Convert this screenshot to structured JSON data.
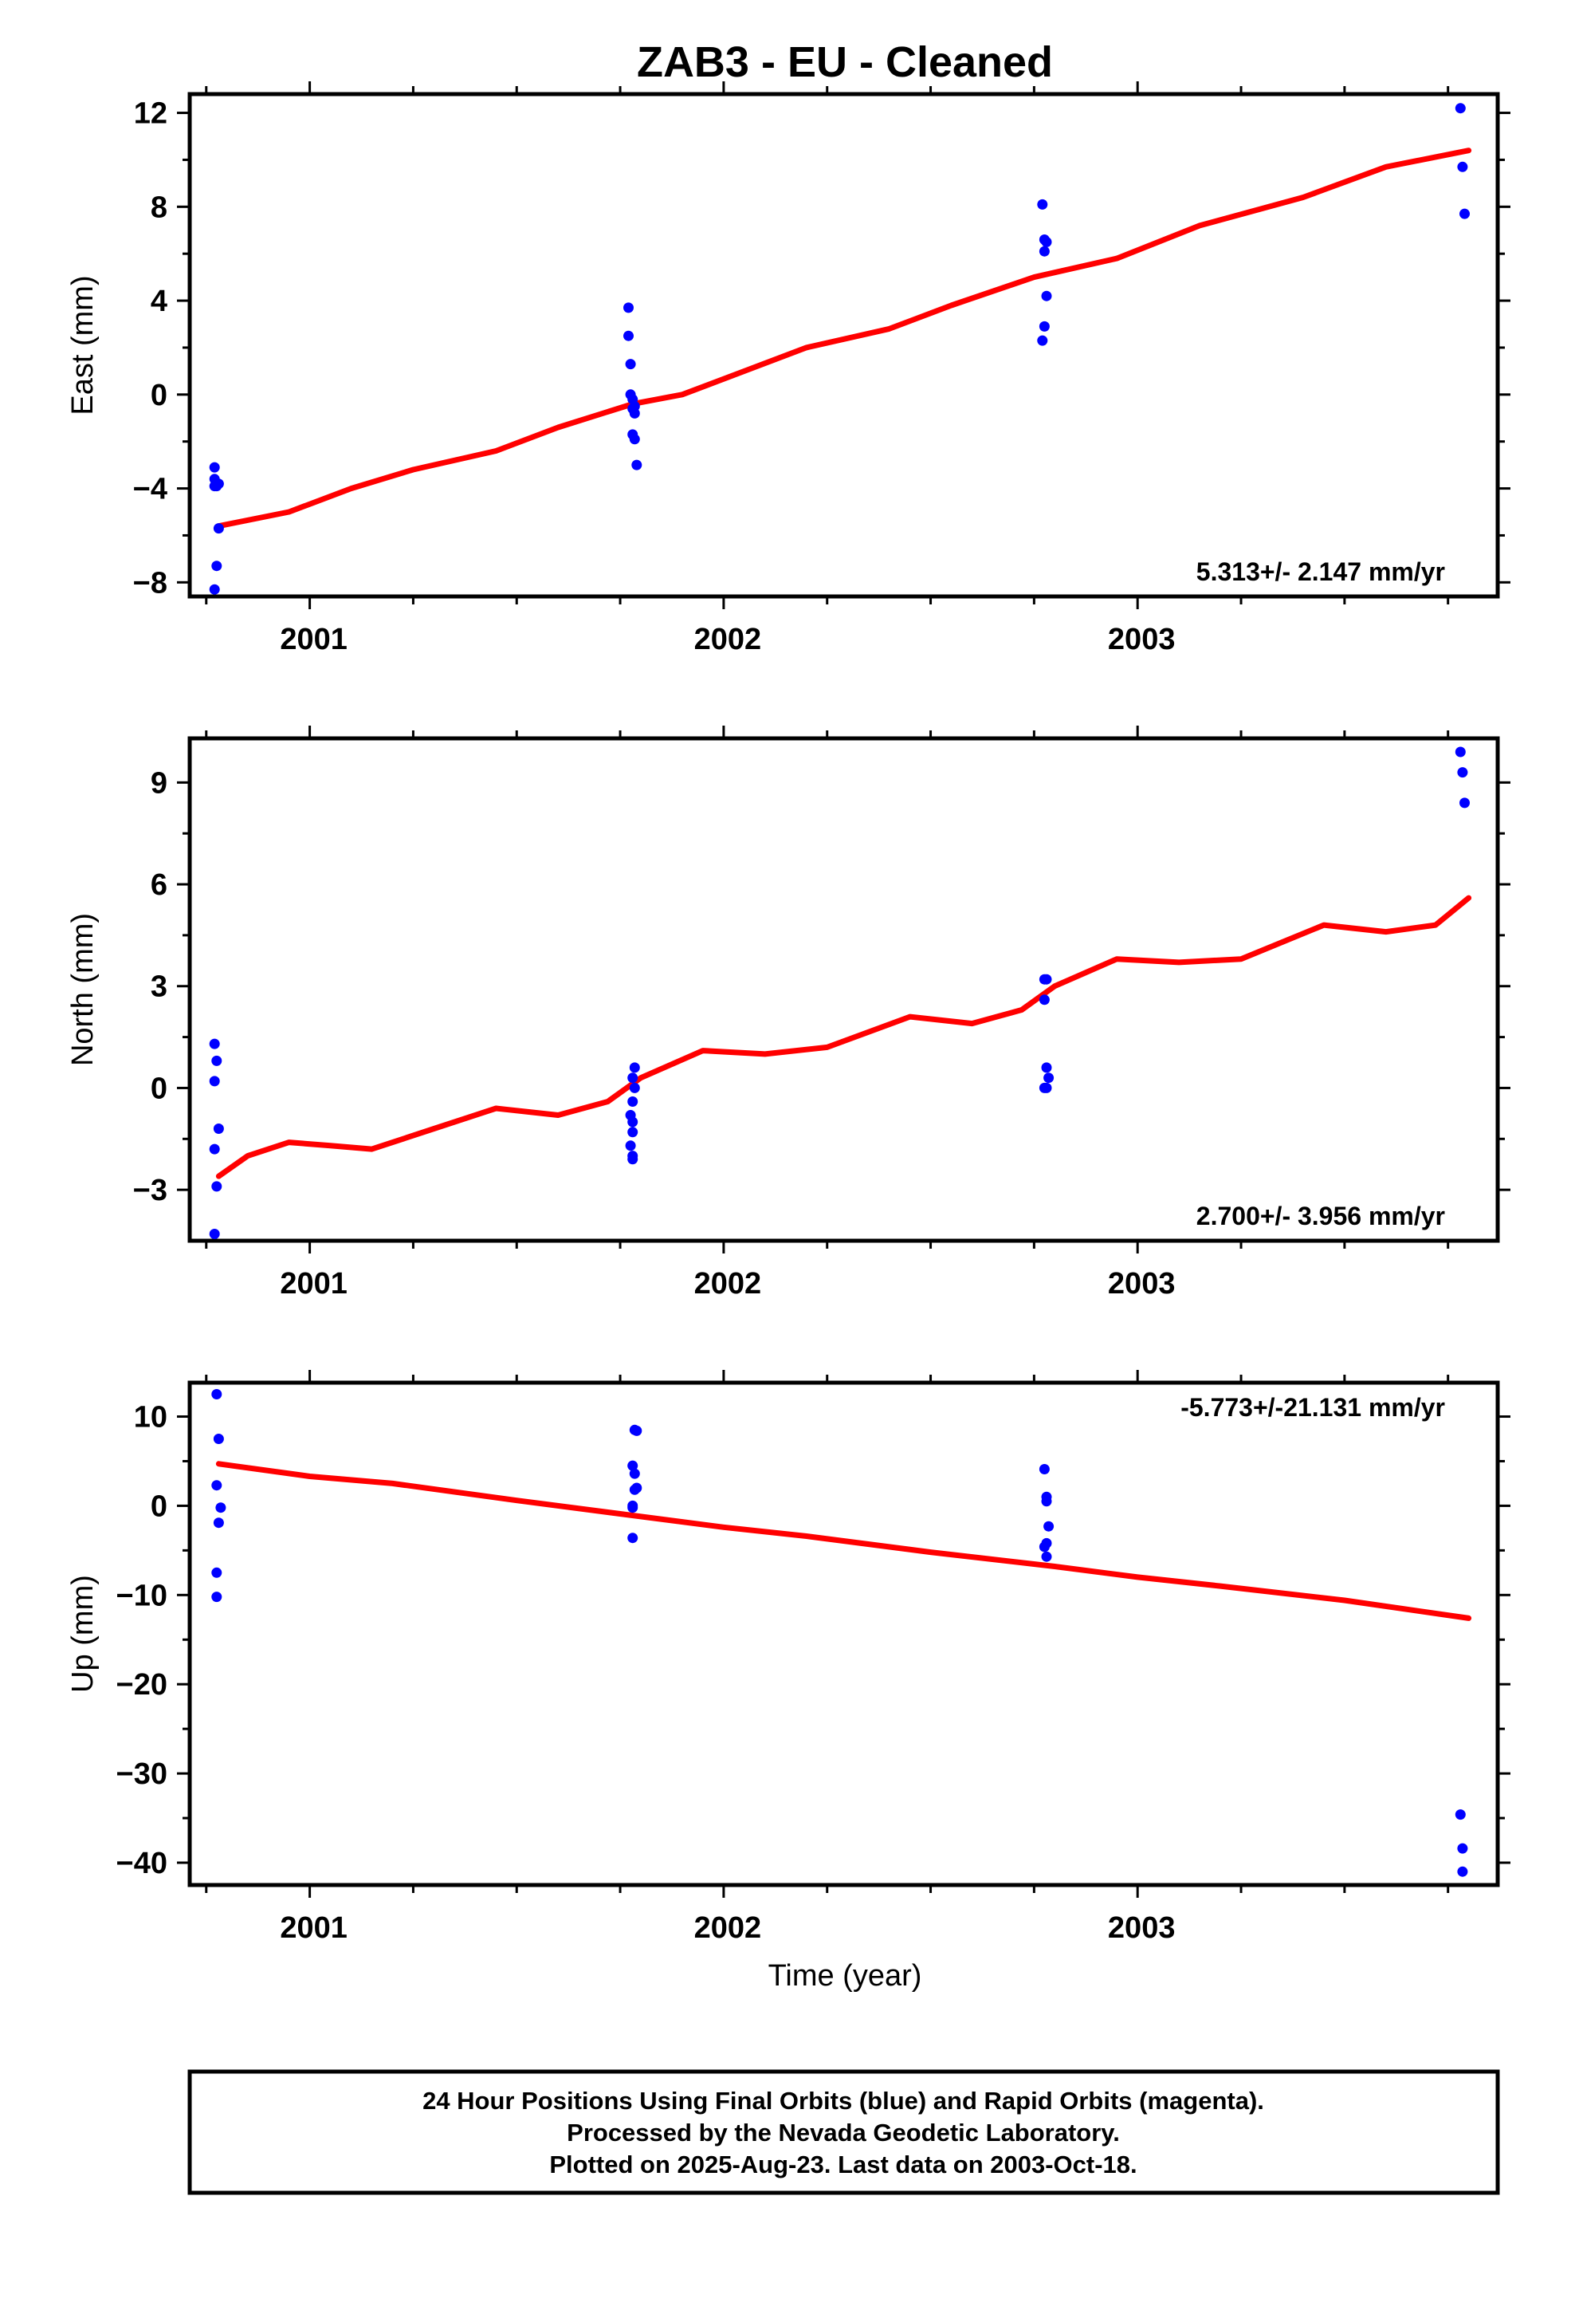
{
  "title": "ZAB3  - EU - Cleaned",
  "xlabel": "Time (year)",
  "x_ticks": [
    "2001",
    "2002",
    "2003"
  ],
  "footer": {
    "line1": "24 Hour Positions Using Final Orbits (blue) and Rapid Orbits (magenta).",
    "line2": "Processed by the Nevada Geodetic Laboratory.",
    "line3": "Plotted on 2025-Aug-23. Last data on 2003-Oct-18."
  },
  "colors": {
    "final_orbits": "#0000ff",
    "rapid_orbits": "#ff00ff",
    "model": "#ff0000",
    "frame": "#000000"
  },
  "chart_data": [
    {
      "type": "scatter",
      "name": "east",
      "ylabel": "East (mm)",
      "rate_text": "5.313+/- 2.147 mm/yr",
      "xlim": [
        2000.71,
        2003.87
      ],
      "ylim": [
        -8.6,
        12.8
      ],
      "yticks": [
        -8,
        -4,
        0,
        4,
        8,
        12
      ],
      "x": [
        2000.77,
        2000.77,
        2000.775,
        2000.78,
        2000.78,
        2000.775,
        2000.77,
        2000.77,
        2001.77,
        2001.77,
        2001.775,
        2001.775,
        2001.78,
        2001.78,
        2001.785,
        2001.78,
        2001.785,
        2001.79,
        2001.785,
        2002.77,
        2002.775,
        2002.78,
        2002.775,
        2002.78,
        2002.775,
        2002.77,
        2003.78,
        2003.785,
        2003.79
      ],
      "y": [
        -3.1,
        -3.6,
        -3.9,
        -3.8,
        -5.7,
        -7.3,
        -8.3,
        -3.9,
        3.7,
        2.5,
        1.3,
        0.0,
        -0.2,
        -0.6,
        -0.8,
        -1.7,
        -1.9,
        -3.0,
        -0.5,
        8.1,
        6.6,
        6.5,
        6.1,
        4.2,
        2.9,
        2.3,
        12.2,
        9.7,
        7.7
      ],
      "model": {
        "x": [
          2000.78,
          2000.95,
          2001.1,
          2001.25,
          2001.45,
          2001.6,
          2001.78,
          2001.9,
          2002.05,
          2002.2,
          2002.4,
          2002.55,
          2002.75,
          2002.95,
          2003.15,
          2003.4,
          2003.6,
          2003.8
        ],
        "y": [
          -5.6,
          -5.0,
          -4.0,
          -3.2,
          -2.4,
          -1.4,
          -0.4,
          0.0,
          1.0,
          2.0,
          2.8,
          3.8,
          5.0,
          5.8,
          7.2,
          8.4,
          9.7,
          10.4
        ]
      }
    },
    {
      "type": "scatter",
      "name": "north",
      "ylabel": "North (mm)",
      "rate_text": "2.700+/- 3.956 mm/yr",
      "xlim": [
        2000.71,
        2003.87
      ],
      "ylim": [
        -4.5,
        10.3
      ],
      "yticks": [
        -3,
        0,
        3,
        6,
        9
      ],
      "x": [
        2000.77,
        2000.775,
        2000.77,
        2000.78,
        2000.77,
        2000.775,
        2000.77,
        2001.785,
        2001.78,
        2001.785,
        2001.78,
        2001.775,
        2001.78,
        2001.78,
        2001.775,
        2001.78,
        2001.78,
        2002.775,
        2002.78,
        2002.775,
        2002.78,
        2002.785,
        2002.78,
        2002.775,
        2003.78,
        2003.785,
        2003.79
      ],
      "y": [
        1.3,
        0.8,
        0.2,
        -1.2,
        -1.8,
        -2.9,
        -4.3,
        0.6,
        0.3,
        0.0,
        -0.4,
        -0.8,
        -1.0,
        -1.3,
        -1.7,
        -2.0,
        -2.1,
        3.2,
        3.2,
        2.6,
        0.6,
        0.3,
        0.0,
        0.0,
        9.9,
        9.3,
        8.4
      ],
      "model": {
        "x": [
          2000.78,
          2000.85,
          2000.95,
          2001.05,
          2001.15,
          2001.3,
          2001.45,
          2001.6,
          2001.72,
          2001.8,
          2001.95,
          2002.1,
          2002.25,
          2002.45,
          2002.6,
          2002.72,
          2002.8,
          2002.95,
          2003.1,
          2003.25,
          2003.45,
          2003.6,
          2003.72,
          2003.8
        ],
        "y": [
          -2.6,
          -2.0,
          -1.6,
          -1.7,
          -1.8,
          -1.2,
          -0.6,
          -0.8,
          -0.4,
          0.3,
          1.1,
          1.0,
          1.2,
          2.1,
          1.9,
          2.3,
          3.0,
          3.8,
          3.7,
          3.8,
          4.8,
          4.6,
          4.8,
          5.6
        ]
      }
    },
    {
      "type": "scatter",
      "name": "up",
      "ylabel": "Up (mm)",
      "rate_text": "-5.773+/-21.131 mm/yr",
      "xlim": [
        2000.71,
        2003.87
      ],
      "ylim": [
        -42.5,
        13.8
      ],
      "yticks": [
        -40,
        -30,
        -20,
        -10,
        0,
        10
      ],
      "x": [
        2000.775,
        2000.78,
        2000.775,
        2000.785,
        2000.78,
        2000.775,
        2000.775,
        2001.78,
        2001.785,
        2001.79,
        2001.785,
        2001.79,
        2001.785,
        2001.78,
        2001.78,
        2001.78,
        2002.775,
        2002.78,
        2002.78,
        2002.785,
        2002.78,
        2002.775,
        2002.78,
        2003.78,
        2003.785,
        2003.785
      ],
      "y": [
        12.5,
        7.5,
        2.3,
        -0.2,
        -1.9,
        -7.5,
        -10.2,
        4.5,
        8.5,
        8.4,
        3.6,
        2.0,
        1.8,
        0.0,
        -0.2,
        -3.6,
        4.1,
        1.0,
        0.5,
        -2.3,
        -4.2,
        -4.6,
        -5.7,
        -34.6,
        -38.4,
        -41.0
      ],
      "model": {
        "x": [
          2000.78,
          2001.0,
          2001.2,
          2001.5,
          2001.8,
          2002.0,
          2002.2,
          2002.5,
          2002.8,
          2003.0,
          2003.2,
          2003.5,
          2003.8
        ],
        "y": [
          4.7,
          3.3,
          2.5,
          0.6,
          -1.2,
          -2.4,
          -3.4,
          -5.2,
          -6.8,
          -8.0,
          -9.0,
          -10.6,
          -12.6
        ]
      }
    }
  ]
}
